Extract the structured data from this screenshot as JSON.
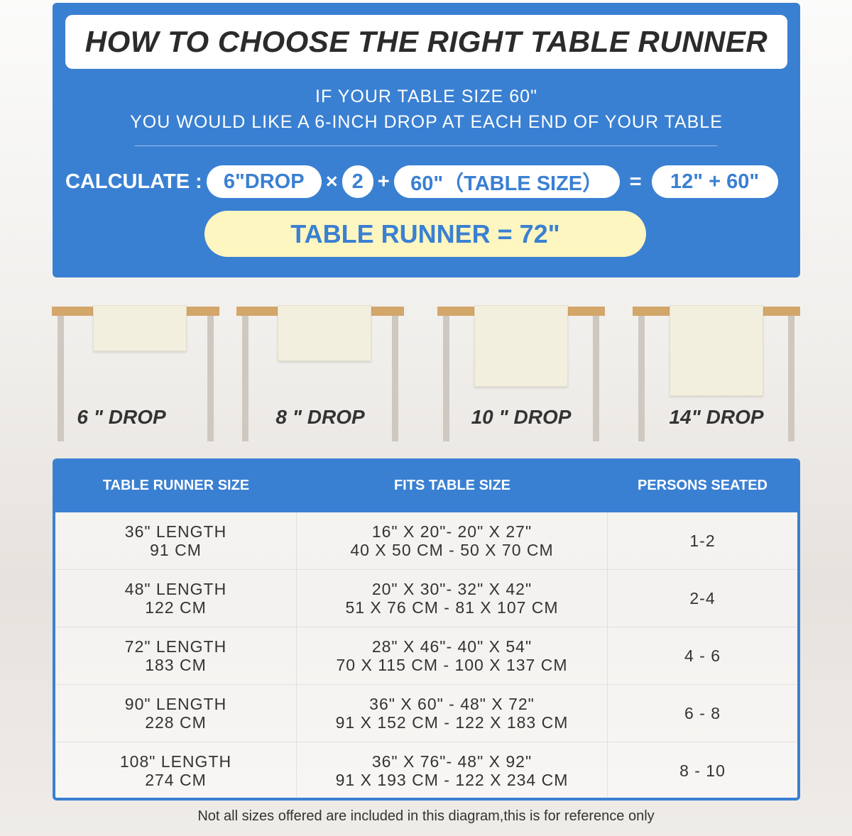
{
  "title": "HOW TO CHOOSE THE RIGHT TABLE RUNNER",
  "intro": {
    "line1": "IF YOUR TABLE SIZE 60\"",
    "line2": "YOU WOULD LIKE A 6-INCH DROP AT EACH END OF YOUR TABLE"
  },
  "calc": {
    "label": "CALCULATE :",
    "drop": "6\"DROP",
    "times": "×",
    "factor": "2",
    "plus": "+",
    "table": "60\"（TABLE SIZE）",
    "equals": "=",
    "sum": "12\" + 60\"",
    "result": "TABLE RUNNER = 72\""
  },
  "drops": [
    "6 \" DROP",
    "8 \" DROP",
    "10 \" DROP",
    "14\" DROP"
  ],
  "table": {
    "headers": [
      "TABLE RUNNER SIZE",
      "FITS TABLE SIZE",
      "PERSONS SEATED"
    ],
    "rows": [
      {
        "len": "36\" LENGTH",
        "cm": "91 CM",
        "fit_in": "16\" X 20\"- 20\" X 27\"",
        "fit_cm": "40 X 50 CM - 50 X 70 CM",
        "seated": "1-2"
      },
      {
        "len": "48\" LENGTH",
        "cm": "122 CM",
        "fit_in": "20\" X 30\"- 32\" X 42\"",
        "fit_cm": "51 X 76 CM - 81 X 107 CM",
        "seated": "2-4"
      },
      {
        "len": "72\" LENGTH",
        "cm": "183 CM",
        "fit_in": "28\" X 46\"- 40\" X 54\"",
        "fit_cm": "70 X 115 CM - 100 X 137 CM",
        "seated": "4 - 6"
      },
      {
        "len": "90\" LENGTH",
        "cm": "228 CM",
        "fit_in": "36\" X 60\" - 48\" X 72\"",
        "fit_cm": "91 X 152 CM - 122 X 183 CM",
        "seated": "6 - 8"
      },
      {
        "len": "108\" LENGTH",
        "cm": "274 CM",
        "fit_in": "36\" X 76\"- 48\" X 92\"",
        "fit_cm": "91 X 193 CM - 122 X 234 CM",
        "seated": "8 - 10"
      }
    ]
  },
  "note": "Not all sizes offered are included in this diagram,this is for reference only",
  "colors": {
    "brand_blue": "#3a80d2",
    "highlight": "#fdf6c0",
    "table_wood": "#d3a66a"
  }
}
